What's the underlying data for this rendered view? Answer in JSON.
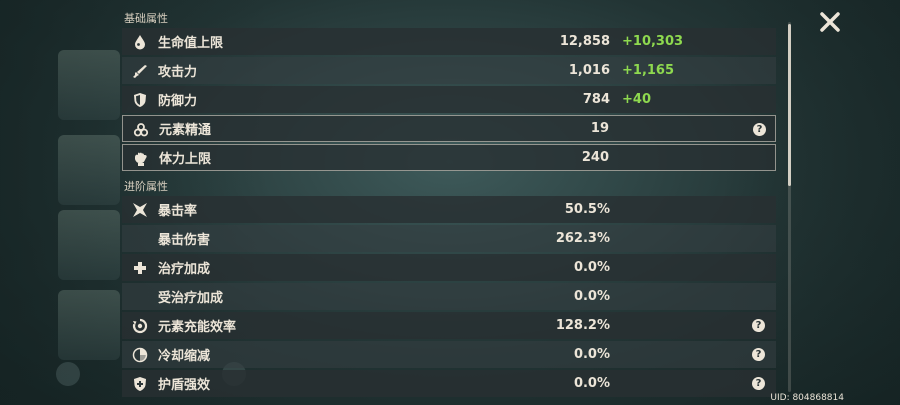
{
  "sections": {
    "basic_title": "基础属性",
    "advanced_title": "进阶属性"
  },
  "basic_stats": [
    {
      "label": "生命值上限",
      "value": "12,858",
      "bonus": "+10,303",
      "icon": "droplet-icon"
    },
    {
      "label": "攻击力",
      "value": "1,016",
      "bonus": "+1,165",
      "icon": "sword-icon"
    },
    {
      "label": "防御力",
      "value": "784",
      "bonus": "+40",
      "icon": "shield-icon"
    },
    {
      "label": "元素精通",
      "value": "19",
      "bonus": "",
      "icon": "elemental-mastery-icon",
      "help": "?"
    },
    {
      "label": "体力上限",
      "value": "240",
      "bonus": "",
      "icon": "stamina-icon"
    }
  ],
  "advanced_stats": [
    {
      "label": "暴击率",
      "value": "50.5%",
      "icon": "crit-rate-icon"
    },
    {
      "label": "暴击伤害",
      "value": "262.3%",
      "icon": ""
    },
    {
      "label": "治疗加成",
      "value": "0.0%",
      "icon": "healing-cross-icon"
    },
    {
      "label": "受治疗加成",
      "value": "0.0%",
      "icon": ""
    },
    {
      "label": "元素充能效率",
      "value": "128.2%",
      "icon": "energy-recharge-icon",
      "help": "?"
    },
    {
      "label": "冷却缩减",
      "value": "0.0%",
      "icon": "cooldown-icon",
      "help": "?"
    },
    {
      "label": "护盾强效",
      "value": "0.0%",
      "icon": "shield-strength-icon",
      "help": "?"
    }
  ],
  "footer": {
    "uid": "UID: 804868814"
  },
  "colors": {
    "bonus": "#8ed94f",
    "text": "#ece5d8"
  }
}
